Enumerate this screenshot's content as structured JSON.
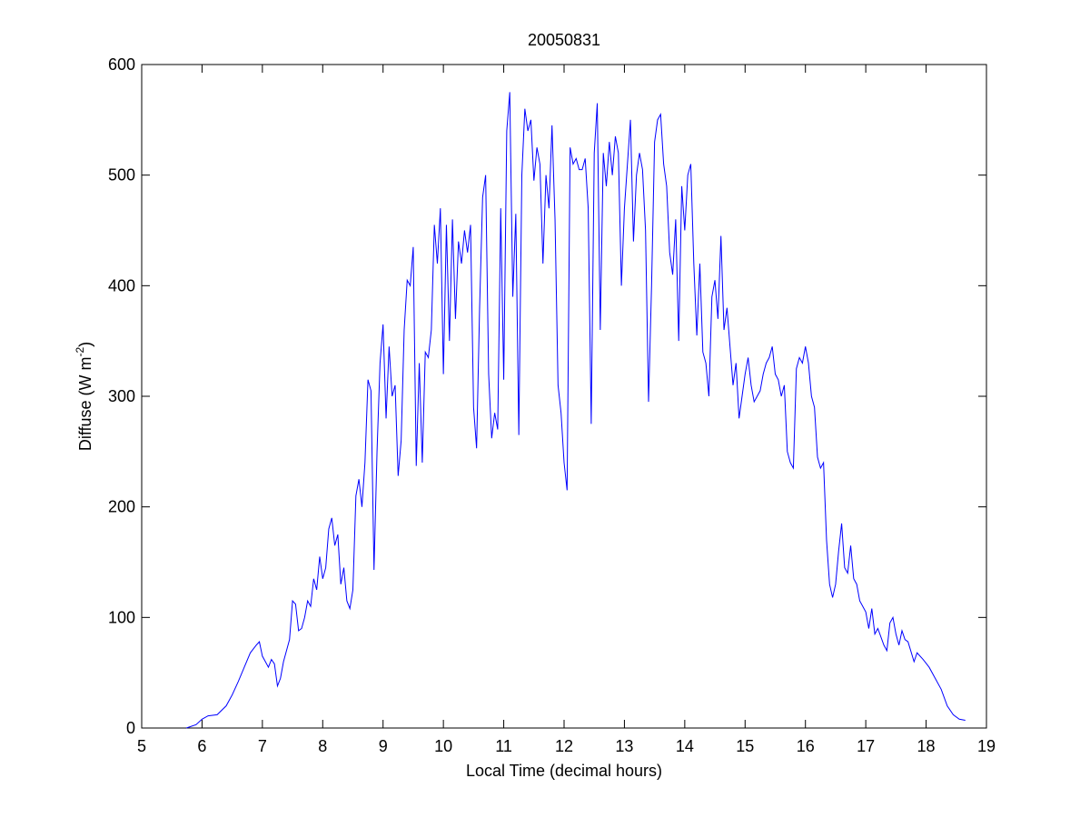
{
  "chart_data": {
    "type": "line",
    "title": "20050831",
    "xlabel": "Local Time (decimal hours)",
    "ylabel": [
      "Diffuse (W m",
      "-2",
      ")"
    ],
    "color": "#0000ff",
    "xlim": [
      5,
      19
    ],
    "xticks": [
      5,
      6,
      7,
      8,
      9,
      10,
      11,
      12,
      13,
      14,
      15,
      16,
      17,
      18,
      19
    ],
    "ylim": [
      0,
      600
    ],
    "yticks": [
      0,
      100,
      200,
      300,
      400,
      500,
      600
    ],
    "grid": false,
    "box": true,
    "x": [
      5.74,
      5.9,
      6.0,
      6.1,
      6.25,
      6.4,
      6.5,
      6.6,
      6.7,
      6.8,
      6.9,
      6.95,
      7.0,
      7.05,
      7.1,
      7.15,
      7.2,
      7.25,
      7.3,
      7.35,
      7.45,
      7.5,
      7.55,
      7.6,
      7.65,
      7.7,
      7.75,
      7.8,
      7.85,
      7.9,
      7.95,
      8.0,
      8.05,
      8.1,
      8.15,
      8.2,
      8.25,
      8.3,
      8.35,
      8.4,
      8.45,
      8.5,
      8.55,
      8.6,
      8.65,
      8.7,
      8.75,
      8.8,
      8.85,
      8.9,
      8.95,
      9.0,
      9.05,
      9.1,
      9.15,
      9.2,
      9.25,
      9.3,
      9.35,
      9.4,
      9.45,
      9.5,
      9.55,
      9.6,
      9.65,
      9.7,
      9.75,
      9.8,
      9.85,
      9.9,
      9.95,
      10.0,
      10.05,
      10.1,
      10.15,
      10.2,
      10.25,
      10.3,
      10.35,
      10.4,
      10.45,
      10.5,
      10.55,
      10.6,
      10.65,
      10.7,
      10.75,
      10.8,
      10.85,
      10.9,
      10.95,
      11.0,
      11.05,
      11.1,
      11.15,
      11.2,
      11.25,
      11.3,
      11.35,
      11.4,
      11.45,
      11.5,
      11.55,
      11.6,
      11.65,
      11.7,
      11.75,
      11.8,
      11.85,
      11.9,
      11.95,
      12.0,
      12.05,
      12.1,
      12.15,
      12.2,
      12.25,
      12.3,
      12.35,
      12.4,
      12.45,
      12.5,
      12.55,
      12.6,
      12.65,
      12.7,
      12.75,
      12.8,
      12.85,
      12.9,
      12.95,
      13.0,
      13.05,
      13.1,
      13.15,
      13.2,
      13.25,
      13.3,
      13.35,
      13.4,
      13.45,
      13.5,
      13.55,
      13.6,
      13.65,
      13.7,
      13.75,
      13.8,
      13.85,
      13.9,
      13.95,
      14.0,
      14.05,
      14.1,
      14.15,
      14.2,
      14.25,
      14.3,
      14.35,
      14.4,
      14.45,
      14.5,
      14.55,
      14.6,
      14.65,
      14.7,
      14.75,
      14.8,
      14.85,
      14.9,
      14.95,
      15.0,
      15.05,
      15.1,
      15.15,
      15.2,
      15.25,
      15.3,
      15.35,
      15.4,
      15.45,
      15.5,
      15.55,
      15.6,
      15.65,
      15.7,
      15.75,
      15.8,
      15.85,
      15.9,
      15.95,
      16.0,
      16.05,
      16.1,
      16.15,
      16.2,
      16.25,
      16.3,
      16.35,
      16.4,
      16.45,
      16.5,
      16.55,
      16.6,
      16.65,
      16.7,
      16.75,
      16.8,
      16.85,
      16.9,
      16.95,
      17.0,
      17.05,
      17.1,
      17.15,
      17.2,
      17.3,
      17.35,
      17.4,
      17.45,
      17.5,
      17.55,
      17.6,
      17.65,
      17.7,
      17.8,
      17.85,
      17.95,
      18.05,
      18.15,
      18.25,
      18.35,
      18.45,
      18.55,
      18.65
    ],
    "values": [
      0,
      3,
      8,
      11,
      12,
      20,
      30,
      42,
      55,
      68,
      75,
      78,
      65,
      60,
      55,
      62,
      58,
      38,
      45,
      60,
      80,
      115,
      112,
      88,
      90,
      100,
      115,
      110,
      135,
      125,
      155,
      135,
      145,
      180,
      190,
      165,
      175,
      130,
      145,
      115,
      108,
      125,
      210,
      225,
      200,
      240,
      315,
      305,
      143,
      250,
      330,
      365,
      280,
      345,
      300,
      310,
      228,
      260,
      360,
      405,
      400,
      435,
      237,
      330,
      240,
      340,
      335,
      360,
      455,
      420,
      470,
      320,
      455,
      350,
      460,
      370,
      440,
      420,
      450,
      430,
      455,
      290,
      253,
      380,
      480,
      500,
      320,
      262,
      285,
      270,
      470,
      315,
      540,
      575,
      390,
      465,
      265,
      500,
      560,
      540,
      550,
      495,
      525,
      510,
      420,
      500,
      470,
      545,
      460,
      310,
      285,
      240,
      215,
      525,
      510,
      515,
      505,
      505,
      515,
      470,
      275,
      520,
      565,
      360,
      520,
      490,
      530,
      500,
      535,
      520,
      400,
      470,
      510,
      550,
      440,
      500,
      520,
      505,
      450,
      295,
      400,
      530,
      550,
      555,
      510,
      490,
      430,
      410,
      460,
      350,
      490,
      450,
      500,
      510,
      420,
      355,
      420,
      340,
      330,
      300,
      390,
      405,
      370,
      445,
      360,
      380,
      345,
      310,
      330,
      280,
      300,
      320,
      335,
      310,
      295,
      300,
      305,
      320,
      330,
      335,
      345,
      320,
      315,
      300,
      310,
      250,
      240,
      235,
      325,
      335,
      330,
      345,
      330,
      300,
      290,
      245,
      235,
      240,
      170,
      130,
      118,
      130,
      160,
      185,
      145,
      140,
      165,
      135,
      130,
      115,
      110,
      105,
      90,
      108,
      85,
      90,
      75,
      70,
      95,
      100,
      85,
      75,
      88,
      80,
      78,
      60,
      68,
      62,
      55,
      45,
      35,
      20,
      12,
      8,
      7
    ]
  }
}
